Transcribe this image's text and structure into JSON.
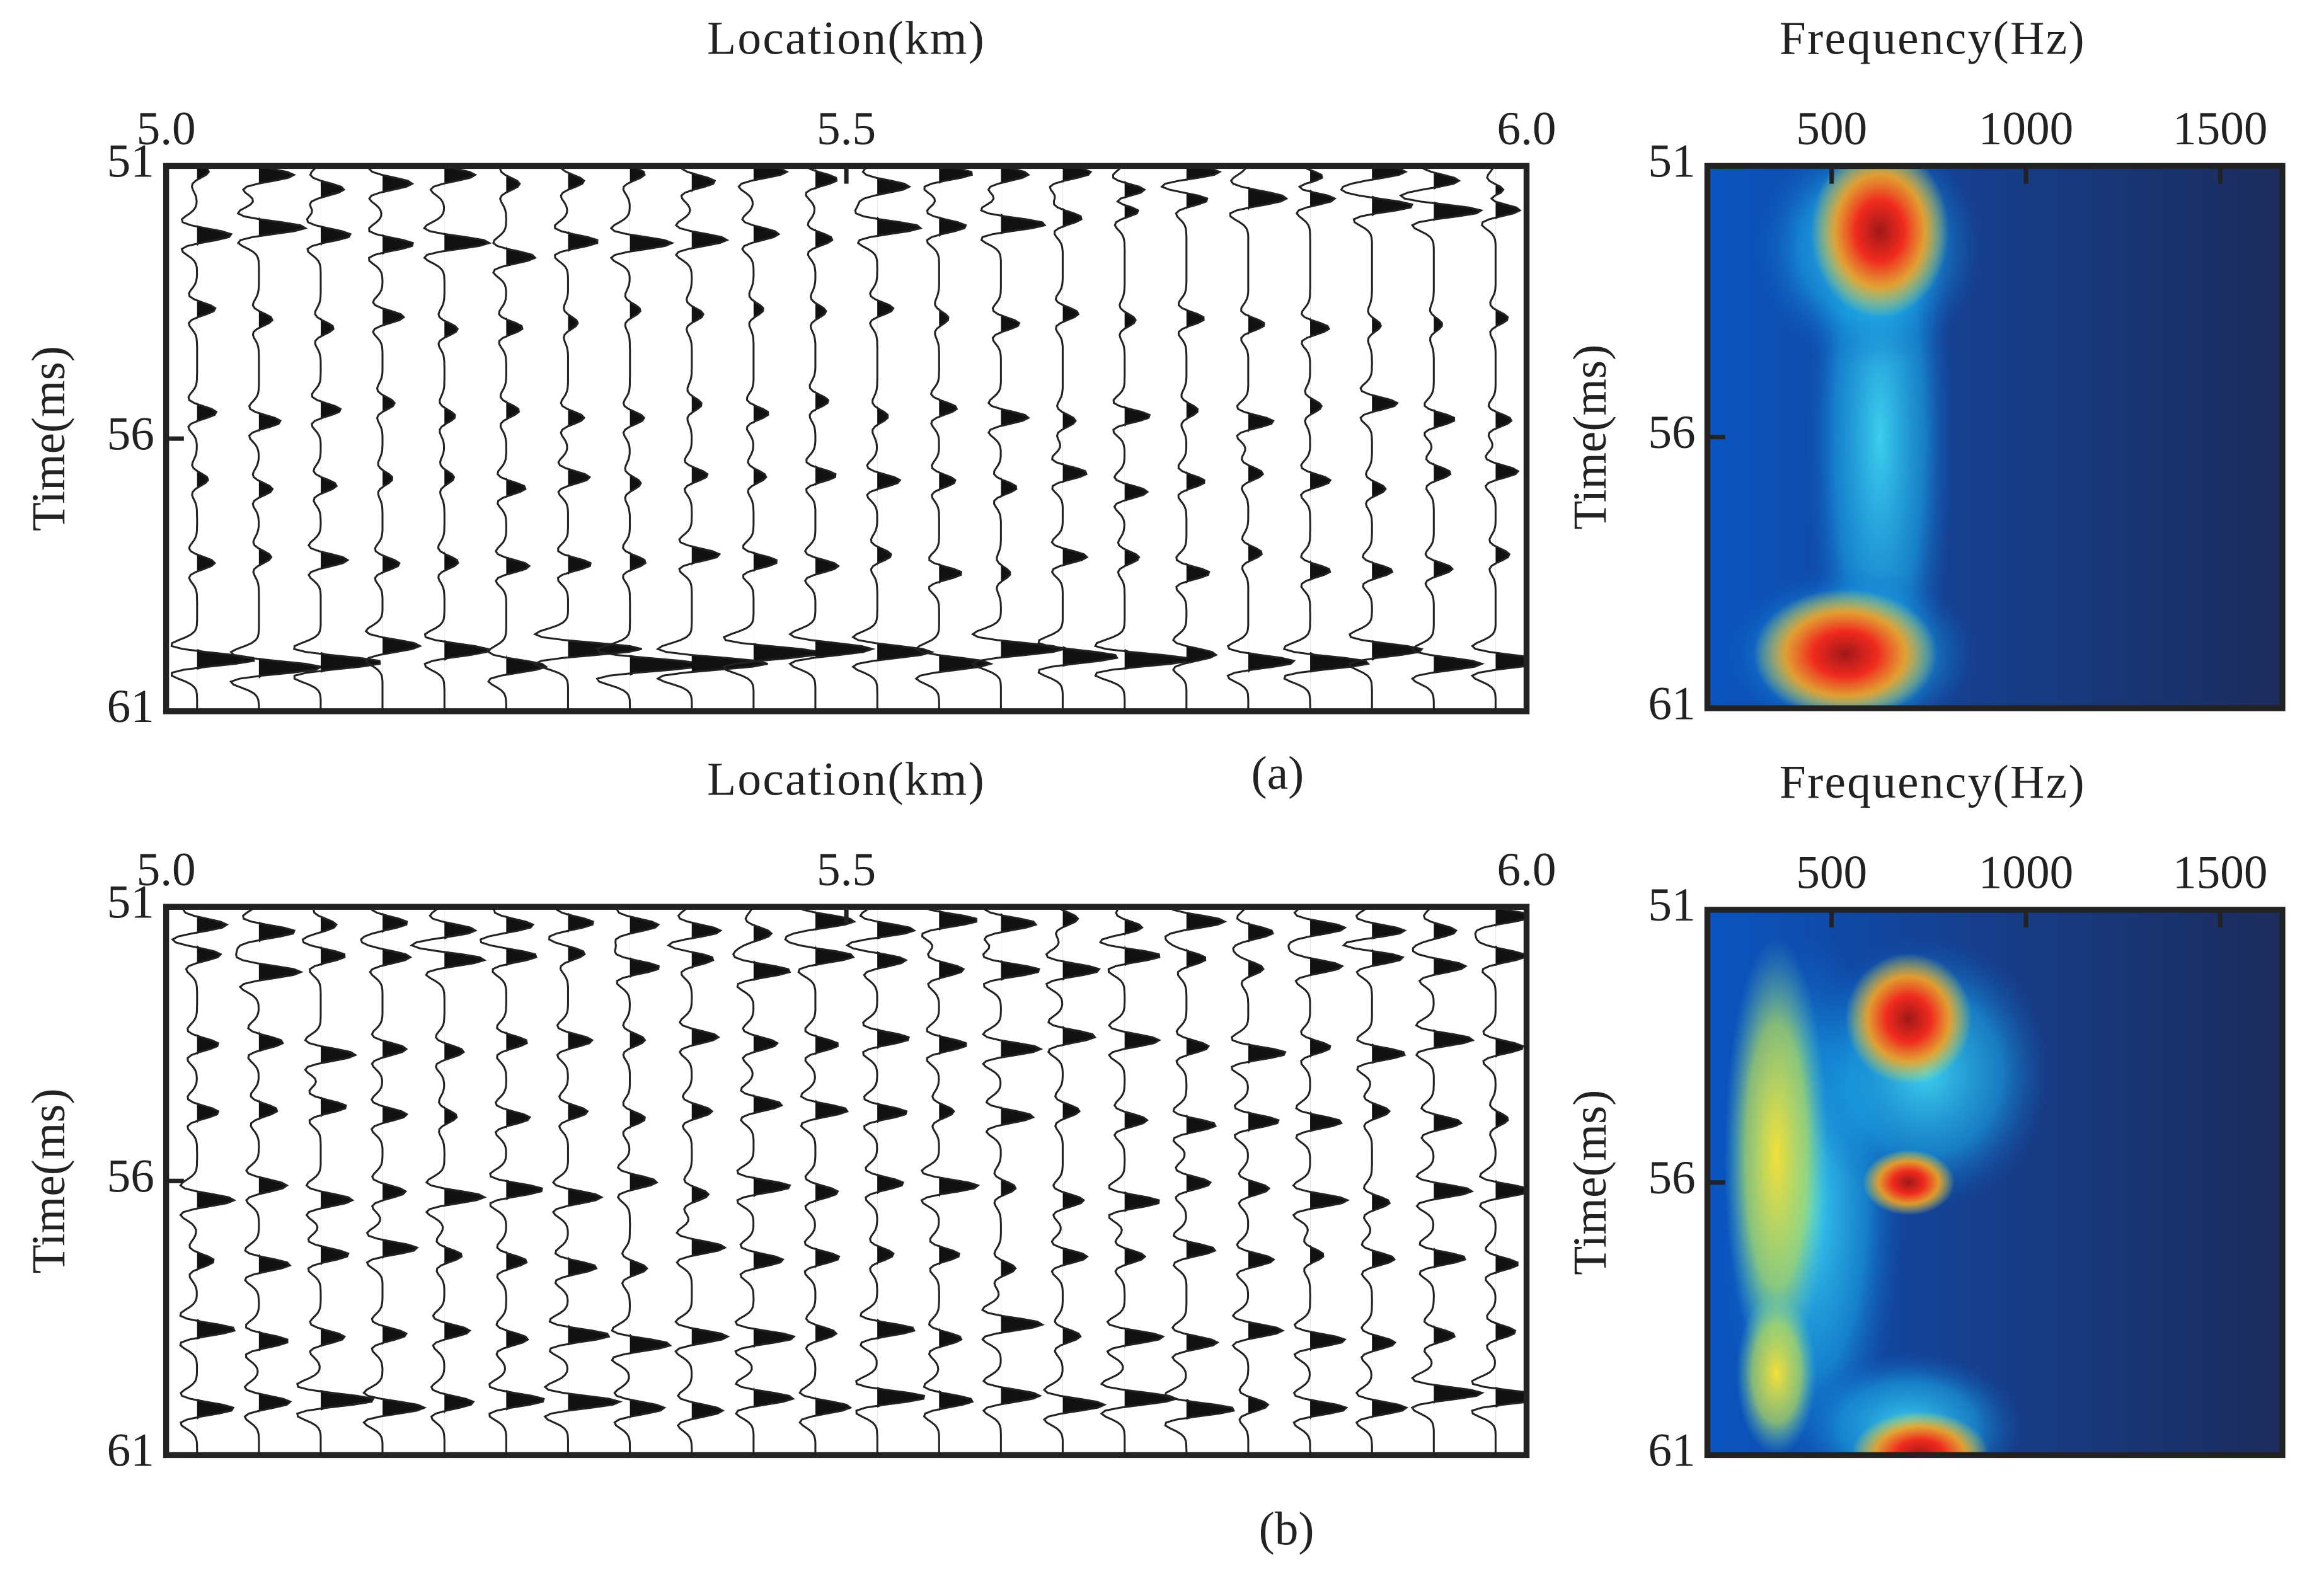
{
  "chart_data": [
    {
      "type": "seismic",
      "xlabel": "Location(km)",
      "ylabel": "Time(ms)",
      "xlim": [
        5.0,
        6.0
      ],
      "xticks": [
        {
          "value": 5.0,
          "label": "5.0"
        },
        5.5,
        {
          "value": 6.0,
          "label": "6.0"
        }
      ],
      "ylim": [
        51,
        61
      ],
      "yticks": [
        51,
        56,
        61
      ]
    },
    {
      "type": "spectrogram",
      "xlabel": "Frequency(Hz)",
      "ylabel": "Time(ms)",
      "xlim": [
        180,
        1660
      ],
      "xticks": [
        500,
        1000,
        1500
      ],
      "ylim": [
        51,
        61
      ],
      "yticks": [
        51,
        56,
        61
      ]
    },
    {
      "type": "seismic",
      "xlabel": "Location(km)",
      "ylabel": "Time(ms)",
      "xlim": [
        5.0,
        6.0
      ],
      "xticks": [
        {
          "value": 5.0,
          "label": "5.0"
        },
        5.5,
        {
          "value": 6.0,
          "label": "6.0"
        }
      ],
      "ylim": [
        51,
        61
      ],
      "yticks": [
        51,
        56,
        61
      ]
    },
    {
      "type": "spectrogram",
      "xlabel": "Frequency(Hz)",
      "ylabel": "Time(ms)",
      "xlim": [
        180,
        1660
      ],
      "xticks": [
        500,
        1000,
        1500
      ],
      "ylim": [
        51,
        61
      ],
      "yticks": [
        51,
        56,
        61
      ]
    }
  ],
  "captions": [
    "(a)",
    "(b)"
  ]
}
